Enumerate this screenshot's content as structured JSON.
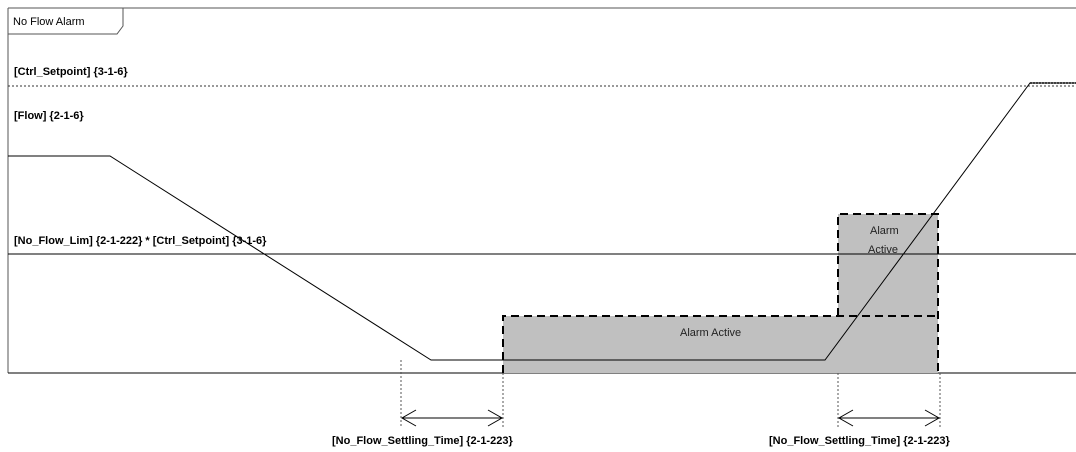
{
  "frame": {
    "title": "No Flow Alarm"
  },
  "signals": {
    "ctrl_setpoint": "[Ctrl_Setpoint] {3-1-6}",
    "flow": "[Flow] {2-1-6}",
    "no_flow_lim": "[No_Flow_Lim] {2-1-222} * [Ctrl_Setpoint] {3-1-6}"
  },
  "alarms": {
    "wide_label": "Alarm Active",
    "narrow_label_line1": "Alarm",
    "narrow_label_line2": "Active"
  },
  "timing": {
    "settling_label_1": "[No_Flow_Settling_Time] {2-1-223}",
    "settling_label_2": "[No_Flow_Settling_Time] {2-1-223}"
  },
  "colors": {
    "alarm_fill": "#c0c0c0",
    "line": "#000000",
    "frame_border": "#555555"
  }
}
